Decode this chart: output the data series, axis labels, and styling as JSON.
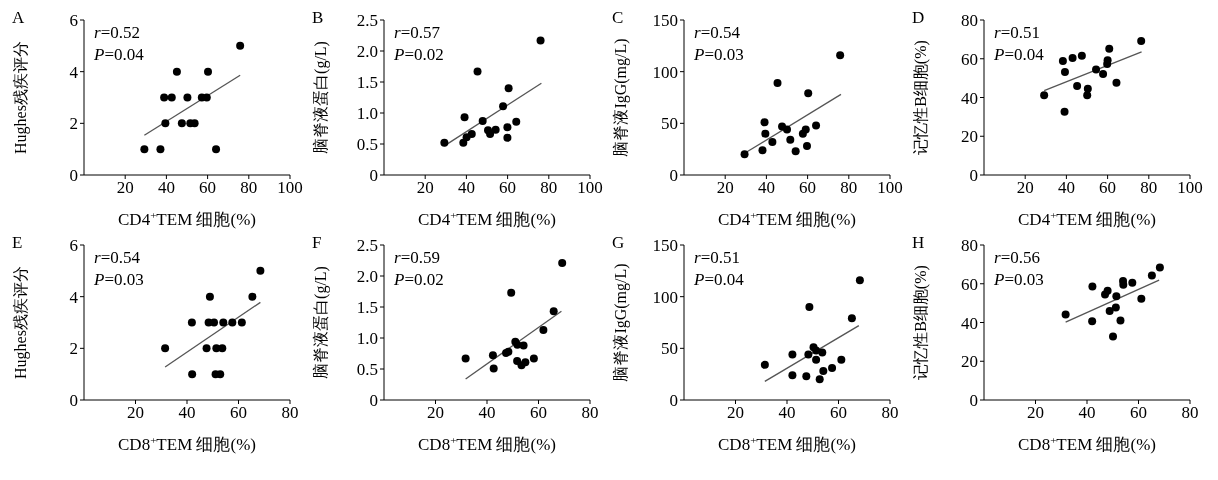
{
  "chart_data": [
    {
      "type": "scatter",
      "title": "A",
      "ylabel": "Hughes残疾评分",
      "xlabel": "CD4$^{+}$TEM 细胞(%)",
      "annotations": [
        "r=0.52",
        "P=0.04"
      ],
      "xlim": [
        0,
        100
      ],
      "xticks": [
        20,
        40,
        60,
        80,
        100
      ],
      "ylim": [
        0,
        6
      ],
      "yticks": [
        0,
        2,
        4,
        6
      ],
      "series": [
        {
          "type": "scatter",
          "marker": "circle",
          "color": "#000000",
          "x": [
            29.3,
            37.1,
            38.9,
            42.6,
            39.5,
            45.1,
            47.5,
            50.2,
            51.6,
            53.7,
            57.2,
            59.6,
            60.2,
            64.1,
            75.8
          ],
          "values": [
            1,
            1,
            3,
            3,
            2,
            4,
            2,
            3,
            2,
            2,
            3,
            3,
            4,
            1,
            5
          ]
        },
        {
          "type": "line",
          "color": "#555555",
          "x": [
            29.3,
            75.8
          ],
          "values": [
            1.54,
            3.86
          ]
        }
      ]
    },
    {
      "type": "scatter",
      "title": "B",
      "ylabel": "脑脊液蛋白(g/L)",
      "xlabel": "CD4$^{+}$TEM 细胞(%)",
      "annotations": [
        "r=0.57",
        "P=0.02"
      ],
      "xlim": [
        0,
        100
      ],
      "xticks": [
        20,
        40,
        60,
        80,
        100
      ],
      "ylim": [
        0,
        2.5
      ],
      "yticks": [
        {
          "value": 0,
          "label": "0"
        },
        {
          "value": 0.5,
          "label": "0.5"
        },
        {
          "value": 1,
          "label": "1.0"
        },
        {
          "value": 1.5,
          "label": "1.5"
        },
        {
          "value": 2,
          "label": "2.0"
        },
        {
          "value": 2.5,
          "label": "2.5"
        }
      ],
      "series": [
        {
          "type": "scatter",
          "marker": "circle",
          "color": "#000000",
          "x": [
            29.3,
            38.5,
            39.1,
            40.1,
            42.6,
            45.4,
            47.9,
            50.5,
            51.5,
            54.2,
            57.8,
            59.9,
            59.9,
            60.5,
            64.2,
            76
          ],
          "values": [
            0.52,
            0.52,
            0.93,
            0.61,
            0.66,
            1.67,
            0.87,
            0.72,
            0.66,
            0.73,
            1.11,
            0.77,
            0.6,
            1.4,
            0.86,
            2.17
          ]
        },
        {
          "type": "line",
          "color": "#555555",
          "x": [
            29.3,
            76.4
          ],
          "values": [
            0.47,
            1.48
          ]
        }
      ]
    },
    {
      "type": "scatter",
      "title": "C",
      "ylabel": "脑脊液IgG(mg/L)",
      "xlabel": "CD4$^{+}$TEM 细胞(%)",
      "annotations": [
        "r=0.54",
        "P=0.03"
      ],
      "xlim": [
        0,
        100
      ],
      "xticks": [
        20,
        40,
        60,
        80,
        100
      ],
      "ylim": [
        0,
        150
      ],
      "yticks": [
        0,
        50,
        100,
        150
      ],
      "series": [
        {
          "type": "scatter",
          "marker": "circle",
          "color": "#000000",
          "x": [
            29.4,
            38.1,
            39.1,
            39.5,
            42.9,
            45.4,
            47.6,
            50,
            51.6,
            54.2,
            57.7,
            59.1,
            59.7,
            60.3,
            64.1,
            75.8
          ],
          "values": [
            20,
            24,
            51,
            40,
            32,
            89,
            47,
            44,
            34,
            23,
            40,
            44,
            28,
            79,
            48,
            116
          ]
        },
        {
          "type": "line",
          "color": "#555555",
          "x": [
            29.4,
            76.2
          ],
          "values": [
            21,
            78
          ]
        }
      ]
    },
    {
      "type": "scatter",
      "title": "D",
      "ylabel": "记忆性B细胞(%)",
      "xlabel": "CD4$^{+}$TEM 细胞(%)",
      "annotations": [
        "r=0.51",
        "P=0.04"
      ],
      "xlim": [
        0,
        100
      ],
      "xticks": [
        20,
        40,
        60,
        80,
        100
      ],
      "ylim": [
        0,
        80
      ],
      "yticks": [
        0,
        20,
        40,
        60,
        80
      ],
      "series": [
        {
          "type": "scatter",
          "marker": "circle",
          "color": "#000000",
          "x": [
            29.2,
            38.3,
            39.3,
            39.1,
            43,
            47.5,
            45.2,
            50.4,
            50.1,
            54.4,
            57.8,
            59.8,
            60,
            60.8,
            64.3,
            76.3
          ],
          "values": [
            41.2,
            58.8,
            53.1,
            32.7,
            60.4,
            61.6,
            46,
            44.5,
            41.2,
            54.5,
            52.1,
            57.3,
            59.2,
            65.2,
            47.6,
            69.2
          ]
        },
        {
          "type": "line",
          "color": "#555555",
          "x": [
            29.2,
            76.5
          ],
          "values": [
            43.6,
            63.5
          ]
        }
      ]
    },
    {
      "type": "scatter",
      "title": "E",
      "ylabel": "Hughes残疾评分",
      "xlabel": "CD8$^{+}$TEM 细胞(%)",
      "annotations": [
        "r=0.54",
        "P=0.03"
      ],
      "xlim": [
        0,
        80
      ],
      "xticks": [
        20,
        40,
        60,
        80
      ],
      "ylim": [
        0,
        6
      ],
      "yticks": [
        0,
        2,
        4,
        6
      ],
      "series": [
        {
          "type": "scatter",
          "marker": "circle",
          "color": "#000000",
          "x": [
            31.5,
            42,
            41.9,
            48.9,
            48.4,
            50.5,
            47.6,
            51.4,
            53.7,
            51.1,
            52.9,
            54.1,
            57.6,
            61.3,
            65.4,
            68.5
          ],
          "values": [
            2,
            1,
            3,
            4,
            3,
            3,
            2,
            2,
            2,
            1,
            1,
            3,
            3,
            3,
            4,
            5
          ]
        },
        {
          "type": "line",
          "color": "#555555",
          "x": [
            31.5,
            68.5
          ],
          "values": [
            1.28,
            3.78
          ]
        }
      ]
    },
    {
      "type": "scatter",
      "title": "F",
      "ylabel": "脑脊液蛋白(g/L)",
      "xlabel": "CD8$^{+}$TEM 细胞(%)",
      "annotations": [
        "r=0.59",
        "P=0.02"
      ],
      "xlim": [
        0,
        80
      ],
      "xticks": [
        20,
        40,
        60,
        80
      ],
      "ylim": [
        0,
        2.5
      ],
      "yticks": [
        {
          "value": 0,
          "label": "0"
        },
        {
          "value": 0.5,
          "label": "0.5"
        },
        {
          "value": 1,
          "label": "1.0"
        },
        {
          "value": 1.5,
          "label": "1.5"
        },
        {
          "value": 2,
          "label": "2.0"
        },
        {
          "value": 2.5,
          "label": "2.5"
        }
      ],
      "series": [
        {
          "type": "scatter",
          "marker": "circle",
          "color": "#000000",
          "x": [
            31.7,
            42.3,
            42.6,
            49.4,
            47.4,
            48.3,
            51,
            51.8,
            51.7,
            53.4,
            54.2,
            54.9,
            58.2,
            61.9,
            65.9,
            69.2
          ],
          "values": [
            0.67,
            0.72,
            0.51,
            1.73,
            0.76,
            0.78,
            0.94,
            0.89,
            0.63,
            0.56,
            0.88,
            0.61,
            0.67,
            1.13,
            1.43,
            2.21
          ]
        },
        {
          "type": "line",
          "color": "#555555",
          "x": [
            31.7,
            68.9
          ],
          "values": [
            0.34,
            1.43
          ]
        }
      ]
    },
    {
      "type": "scatter",
      "title": "G",
      "ylabel": "脑脊液IgG(mg/L)",
      "xlabel": "CD8$^{+}$TEM 细胞(%)",
      "annotations": [
        "r=0.51",
        "P=0.04"
      ],
      "xlim": [
        0,
        80
      ],
      "xticks": [
        20,
        40,
        60,
        80
      ],
      "ylim": [
        0,
        150
      ],
      "yticks": [
        0,
        50,
        100,
        150
      ],
      "series": [
        {
          "type": "scatter",
          "marker": "circle",
          "color": "#000000",
          "x": [
            31.4,
            42.1,
            42.1,
            47.5,
            48.3,
            48.7,
            50.3,
            51.3,
            51.3,
            52.7,
            53.7,
            54.1,
            57.5,
            61.1,
            65.2,
            68.3
          ],
          "values": [
            34,
            44,
            24,
            23,
            44,
            90,
            51,
            39,
            48,
            20,
            46,
            28,
            31,
            39,
            79,
            116
          ]
        },
        {
          "type": "line",
          "color": "#555555",
          "x": [
            31.4,
            67.9
          ],
          "values": [
            18,
            72
          ]
        }
      ]
    },
    {
      "type": "scatter",
      "title": "H",
      "ylabel": "记忆性B细胞(%)",
      "xlabel": "CD8$^{+}$TEM 细胞(%)",
      "annotations": [
        "r=0.56",
        "P=0.03"
      ],
      "xlim": [
        0,
        80
      ],
      "xticks": [
        20,
        40,
        60,
        80
      ],
      "ylim": [
        0,
        80
      ],
      "yticks": [
        0,
        20,
        40,
        60,
        80
      ],
      "series": [
        {
          "type": "scatter",
          "marker": "circle",
          "color": "#000000",
          "x": [
            31.7,
            42.1,
            42,
            47,
            48,
            48.8,
            50.1,
            51.4,
            51.2,
            53,
            54,
            54.1,
            57.6,
            61.1,
            65.2,
            68.3
          ],
          "values": [
            44.1,
            58.6,
            40.7,
            54.5,
            56.4,
            46,
            32.8,
            53.5,
            47.7,
            41,
            61.4,
            59.5,
            60.5,
            52.3,
            64.3,
            68.4
          ]
        },
        {
          "type": "line",
          "color": "#555555",
          "x": [
            31.7,
            68
          ],
          "values": [
            40.2,
            61.9
          ]
        }
      ]
    }
  ]
}
